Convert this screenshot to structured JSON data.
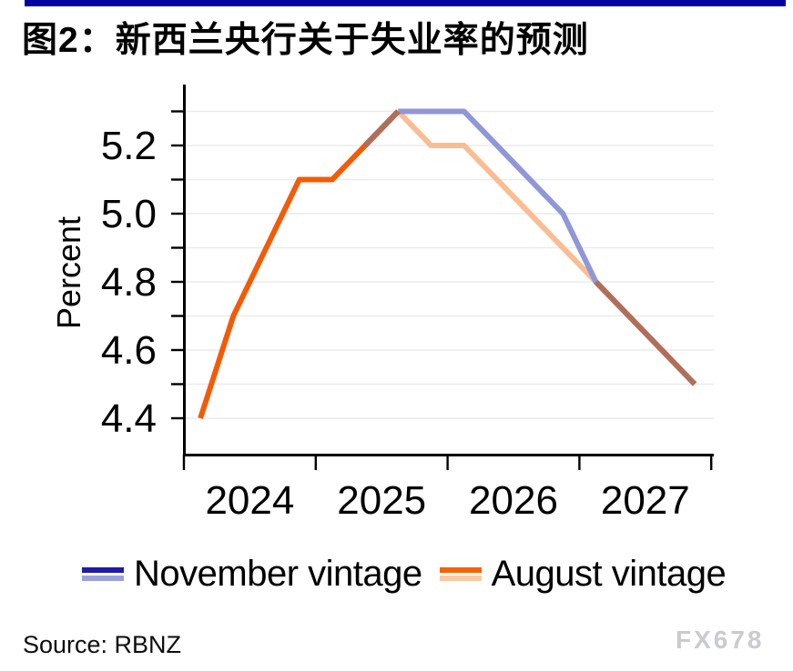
{
  "page": {
    "title": "图2：新西兰央行关于失业率的预测",
    "source": "Source: RBNZ",
    "watermark": "FX678",
    "accent_bar_color": "#0202A0"
  },
  "legend": [
    {
      "label": "November vintage",
      "actual_color": "#1F1CA5",
      "forecast_color": "#9AA2DE"
    },
    {
      "label": "August vintage",
      "actual_color": "#F56301",
      "forecast_color": "#FAC9A3"
    }
  ],
  "chart_data": {
    "type": "line",
    "title": "图2：新西兰央行关于失业率的预测",
    "ylabel": "Percent",
    "x_quarters": [
      "2024Q1",
      "2024Q2",
      "2024Q3",
      "2024Q4",
      "2025Q1",
      "2025Q2",
      "2025Q3",
      "2025Q4",
      "2026Q1",
      "2026Q2",
      "2026Q3",
      "2026Q4",
      "2027Q1",
      "2027Q2",
      "2027Q3",
      "2027Q4"
    ],
    "xticklabels": [
      "2024",
      "2025",
      "2026",
      "2027"
    ],
    "ytick_labels": [
      "5.2",
      "5.0",
      "4.8",
      "4.6",
      "4.4"
    ],
    "yticks_minor": [
      4.4,
      4.5,
      4.6,
      4.7,
      4.8,
      4.9,
      5.0,
      5.1,
      5.2,
      5.3
    ],
    "ylim": [
      4.35,
      5.35
    ],
    "grid": "horizontal every 0.1",
    "legend_position": "bottom",
    "series": [
      {
        "name": "November vintage",
        "values": [
          null,
          null,
          null,
          null,
          null,
          5.2,
          5.3,
          5.3,
          5.3,
          5.2,
          5.1,
          5.0,
          4.8,
          4.7,
          4.6,
          4.5
        ],
        "actual_through_index": 6,
        "actual_color": "#1C1CA4",
        "forecast_color": "#8F97D8"
      },
      {
        "name": "August vintage",
        "values": [
          4.4,
          4.7,
          4.9,
          5.1,
          5.1,
          5.2,
          5.3,
          5.2,
          5.2,
          5.1,
          5.0,
          4.9,
          4.8,
          4.7,
          4.6,
          4.5
        ],
        "actual_through_index": 6,
        "actual_color": "#F25C07",
        "forecast_color": "#FABD92"
      }
    ],
    "overlap_color": "#B26E58",
    "grid_color": "#EBEBEB",
    "axis_color": "#000000"
  }
}
